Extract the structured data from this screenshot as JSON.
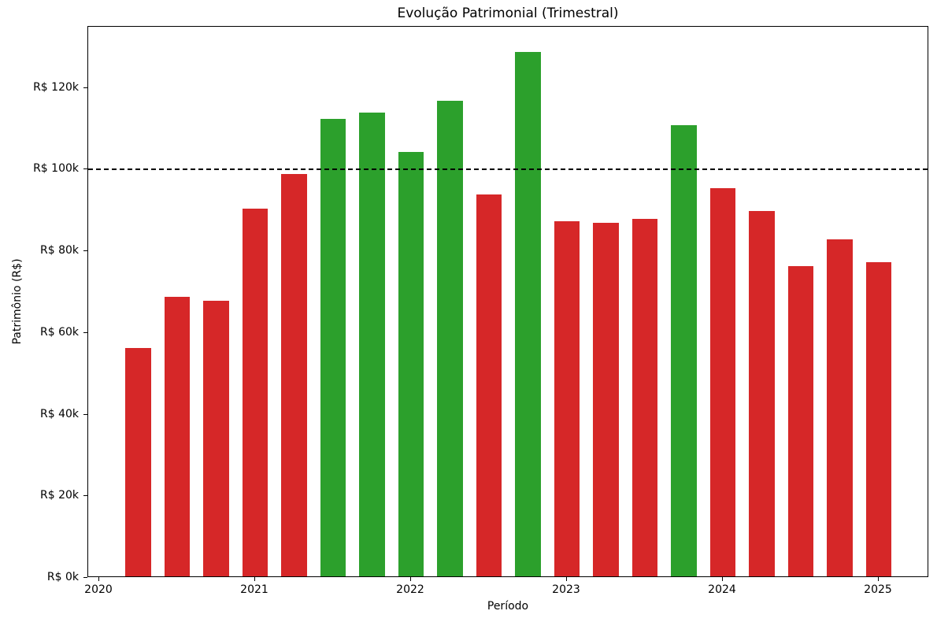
{
  "chart_data": {
    "type": "bar",
    "title": "Evolução Patrimonial (Trimestral)",
    "xlabel": "Período",
    "ylabel": "Patrimônio (R$)",
    "unit": "R$ thousands",
    "grid": false,
    "legend": "none",
    "background_color": "#ffffff",
    "xlim": [
      2019.9293,
      2025.3232
    ],
    "ylim": [
      0,
      135
    ],
    "x_tick_values": [
      2020,
      2021,
      2022,
      2023,
      2024,
      2025
    ],
    "x_tick_labels": [
      "2020",
      "2021",
      "2022",
      "2023",
      "2024",
      "2025"
    ],
    "y_tick_values": [
      0,
      20,
      40,
      60,
      80,
      100,
      120
    ],
    "y_tick_labels": [
      "R$ 0k",
      "R$ 20k",
      "R$ 40k",
      "R$ 60k",
      "R$ 80k",
      "R$ 100k",
      "R$ 120k"
    ],
    "bar_width_x": 0.162,
    "threshold_line": {
      "value": 100,
      "style": "dashed",
      "color": "#000000"
    },
    "colors": {
      "above_threshold": "#2ca02c",
      "below_threshold": "#d62728"
    },
    "points": [
      {
        "period": "2020-Q2",
        "x": 2020.25,
        "value": 56.0
      },
      {
        "period": "2020-Q3",
        "x": 2020.5,
        "value": 68.5
      },
      {
        "period": "2020-Q4",
        "x": 2020.75,
        "value": 67.5
      },
      {
        "period": "2021-Q1",
        "x": 2021.0,
        "value": 90.0
      },
      {
        "period": "2021-Q2",
        "x": 2021.25,
        "value": 98.5
      },
      {
        "period": "2021-Q3",
        "x": 2021.5,
        "value": 112.0
      },
      {
        "period": "2021-Q4",
        "x": 2021.75,
        "value": 113.5
      },
      {
        "period": "2022-Q1",
        "x": 2022.0,
        "value": 104.0
      },
      {
        "period": "2022-Q2",
        "x": 2022.25,
        "value": 116.5
      },
      {
        "period": "2022-Q3",
        "x": 2022.5,
        "value": 93.5
      },
      {
        "period": "2022-Q4",
        "x": 2022.75,
        "value": 128.5
      },
      {
        "period": "2023-Q1",
        "x": 2023.0,
        "value": 87.0
      },
      {
        "period": "2023-Q2",
        "x": 2023.25,
        "value": 86.5
      },
      {
        "period": "2023-Q3",
        "x": 2023.5,
        "value": 87.5
      },
      {
        "period": "2023-Q4",
        "x": 2023.75,
        "value": 110.5
      },
      {
        "period": "2024-Q1",
        "x": 2024.0,
        "value": 95.0
      },
      {
        "period": "2024-Q2",
        "x": 2024.25,
        "value": 89.5
      },
      {
        "period": "2024-Q3",
        "x": 2024.5,
        "value": 76.0
      },
      {
        "period": "2024-Q4",
        "x": 2024.75,
        "value": 82.5
      },
      {
        "period": "2025-Q1",
        "x": 2025.0,
        "value": 77.0
      }
    ]
  }
}
